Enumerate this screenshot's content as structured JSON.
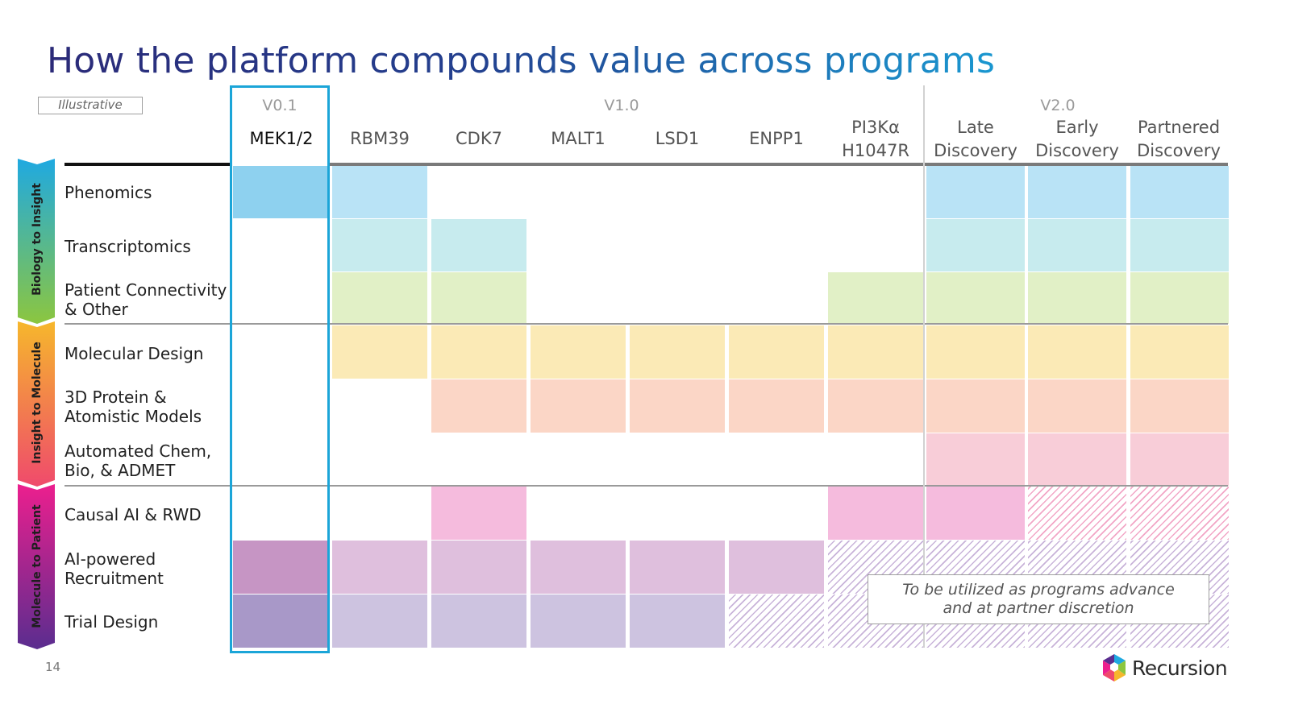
{
  "title": "How the platform compounds value across programs",
  "tag": "Illustrative",
  "versions": [
    "V0.1",
    "V1.0",
    "V2.0"
  ],
  "columns": [
    {
      "id": "mek",
      "lines": [
        "MEK1/2"
      ]
    },
    {
      "id": "rbm39",
      "lines": [
        "RBM39"
      ]
    },
    {
      "id": "cdk7",
      "lines": [
        "CDK7"
      ]
    },
    {
      "id": "malt1",
      "lines": [
        "MALT1"
      ]
    },
    {
      "id": "lsd1",
      "lines": [
        "LSD1"
      ]
    },
    {
      "id": "enpp1",
      "lines": [
        "ENPP1"
      ]
    },
    {
      "id": "pi3k",
      "lines": [
        "PI3Kα",
        "H1047R"
      ]
    },
    {
      "id": "late",
      "lines": [
        "Late",
        "Discovery"
      ]
    },
    {
      "id": "early",
      "lines": [
        "Early",
        "Discovery"
      ]
    },
    {
      "id": "partnered",
      "lines": [
        "Partnered",
        "Discovery"
      ]
    }
  ],
  "rows": [
    {
      "id": "phenomics",
      "lines": [
        "Phenomics"
      ],
      "color": "#b9e3f6",
      "strong": "#8ed1ef"
    },
    {
      "id": "transcriptomics",
      "lines": [
        "Transcriptomics"
      ],
      "color": "#c7ebee"
    },
    {
      "id": "patient-connectivity",
      "lines": [
        "Patient Connectivity",
        "& Other"
      ],
      "color": "#e1f0c6"
    },
    {
      "id": "molecular-design",
      "lines": [
        "Molecular Design"
      ],
      "color": "#fbeab6"
    },
    {
      "id": "protein-models",
      "lines": [
        "3D Protein &",
        "Atomistic Models"
      ],
      "color": "#fbd6c6"
    },
    {
      "id": "automated-chem",
      "lines": [
        "Automated Chem,",
        "Bio, & ADMET"
      ],
      "color": "#f8cdd8"
    },
    {
      "id": "causal-ai",
      "lines": [
        "Causal AI & RWD"
      ],
      "color": "#f5bbdd"
    },
    {
      "id": "ai-recruitment",
      "lines": [
        "AI-powered",
        "Recruitment"
      ],
      "color": "#dfbfdd",
      "strong": "#c695c4"
    },
    {
      "id": "trial-design",
      "lines": [
        "Trial Design"
      ],
      "color": "#cdc3e0",
      "strong": "#a898c8"
    }
  ],
  "cells": [
    [
      "S",
      "F",
      0,
      0,
      0,
      0,
      0,
      "F",
      "F",
      "F"
    ],
    [
      0,
      "F",
      "F",
      0,
      0,
      0,
      0,
      "F",
      "F",
      "F"
    ],
    [
      0,
      "F",
      "F",
      0,
      0,
      0,
      "F",
      "F",
      "F",
      "F"
    ],
    [
      0,
      "F",
      "F",
      "F",
      "F",
      "F",
      "F",
      "F",
      "F",
      "F"
    ],
    [
      0,
      0,
      "F",
      "F",
      "F",
      "F",
      "F",
      "F",
      "F",
      "F"
    ],
    [
      0,
      0,
      0,
      0,
      0,
      0,
      0,
      "F",
      "F",
      "F"
    ],
    [
      0,
      0,
      "F",
      0,
      0,
      0,
      "F",
      "F",
      "H",
      "H"
    ],
    [
      "S",
      "F",
      "F",
      "F",
      "F",
      "F",
      "H",
      "H",
      "H",
      "H"
    ],
    [
      "S",
      "F",
      "F",
      "F",
      "F",
      "H",
      "H",
      "H",
      "H",
      "H"
    ]
  ],
  "groups": [
    {
      "label": "Biology to Insight"
    },
    {
      "label": "Insight to Molecule"
    },
    {
      "label": "Molecule to Patient"
    }
  ],
  "note": [
    "To be utilized as programs advance",
    "and at partner discretion"
  ],
  "page_number": "14",
  "brand": "Recursion"
}
